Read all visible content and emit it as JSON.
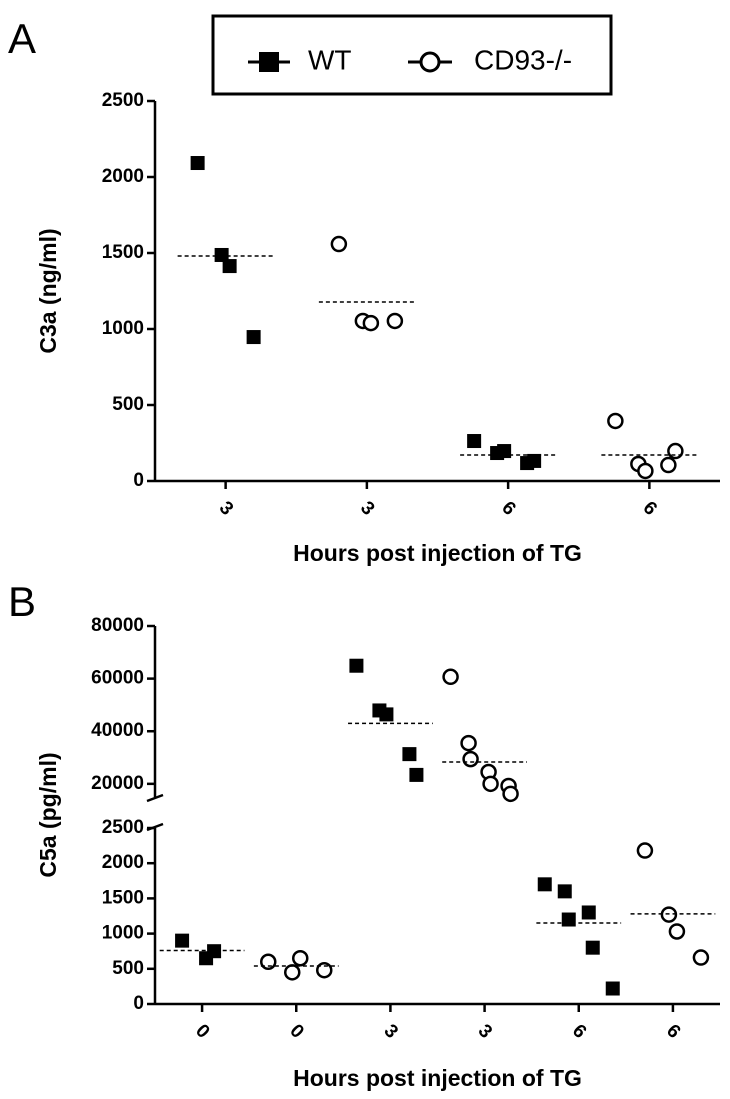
{
  "legend_names_from": "chart_data.0.series",
  "chart_data": [
    {
      "type": "dot",
      "panel_label": "A",
      "y_label": "C3a (ng/ml)",
      "x_label": "Hours post injection of TG",
      "categories": [
        "3",
        "3",
        "6",
        "6"
      ],
      "ylim": [
        0,
        2500
      ],
      "yticks": [
        0,
        500,
        1000,
        1500,
        2000,
        2500
      ],
      "series": [
        {
          "name": "WT",
          "marker": "square",
          "color": "#000000",
          "values": [
            [
              2092,
              1487,
              1414,
              947
            ],
            null,
            [
              263,
              184,
              197,
              118,
              132
            ],
            null
          ],
          "means": [
            1480,
            null,
            171,
            null
          ]
        },
        {
          "name": "CD93-/-",
          "marker": "circle",
          "color": "#000000",
          "values": [
            null,
            [
              1559,
              1053,
              1039,
              1053
            ],
            null,
            [
              395,
              112,
              66,
              105,
              197
            ]
          ],
          "means": [
            null,
            1178,
            null,
            171
          ]
        }
      ]
    },
    {
      "type": "dot",
      "panel_label": "B",
      "y_label": "C5a (pg/ml)",
      "x_label": "Hours post injection of TG",
      "categories": [
        "0",
        "0",
        "3",
        "3",
        "6",
        "6"
      ],
      "ylim": [
        0,
        80000
      ],
      "ybreak": [
        2500,
        15000
      ],
      "yticks": [
        0,
        500,
        1000,
        1500,
        2000,
        2500,
        20000,
        40000,
        60000,
        80000
      ],
      "series": [
        {
          "marker": "square",
          "color": "#000000",
          "values": [
            [
              900,
              650,
              750
            ],
            null,
            [
              64900,
              47900,
              46400,
              31300,
              23400
            ],
            null,
            [
              1700,
              1600,
              1200,
              1300,
              800,
              220
            ],
            null
          ],
          "means": [
            760,
            null,
            43000,
            null,
            1150,
            null
          ]
        },
        {
          "marker": "circle",
          "color": "#000000",
          "values": [
            null,
            [
              600,
              450,
              650,
              480
            ],
            null,
            [
              60700,
              35500,
              29400,
              24500,
              20000,
              19200,
              16200
            ],
            null,
            [
              2180,
              1270,
              1030,
              660
            ]
          ],
          "means": [
            null,
            540,
            null,
            28300,
            null,
            1280
          ]
        }
      ]
    }
  ]
}
